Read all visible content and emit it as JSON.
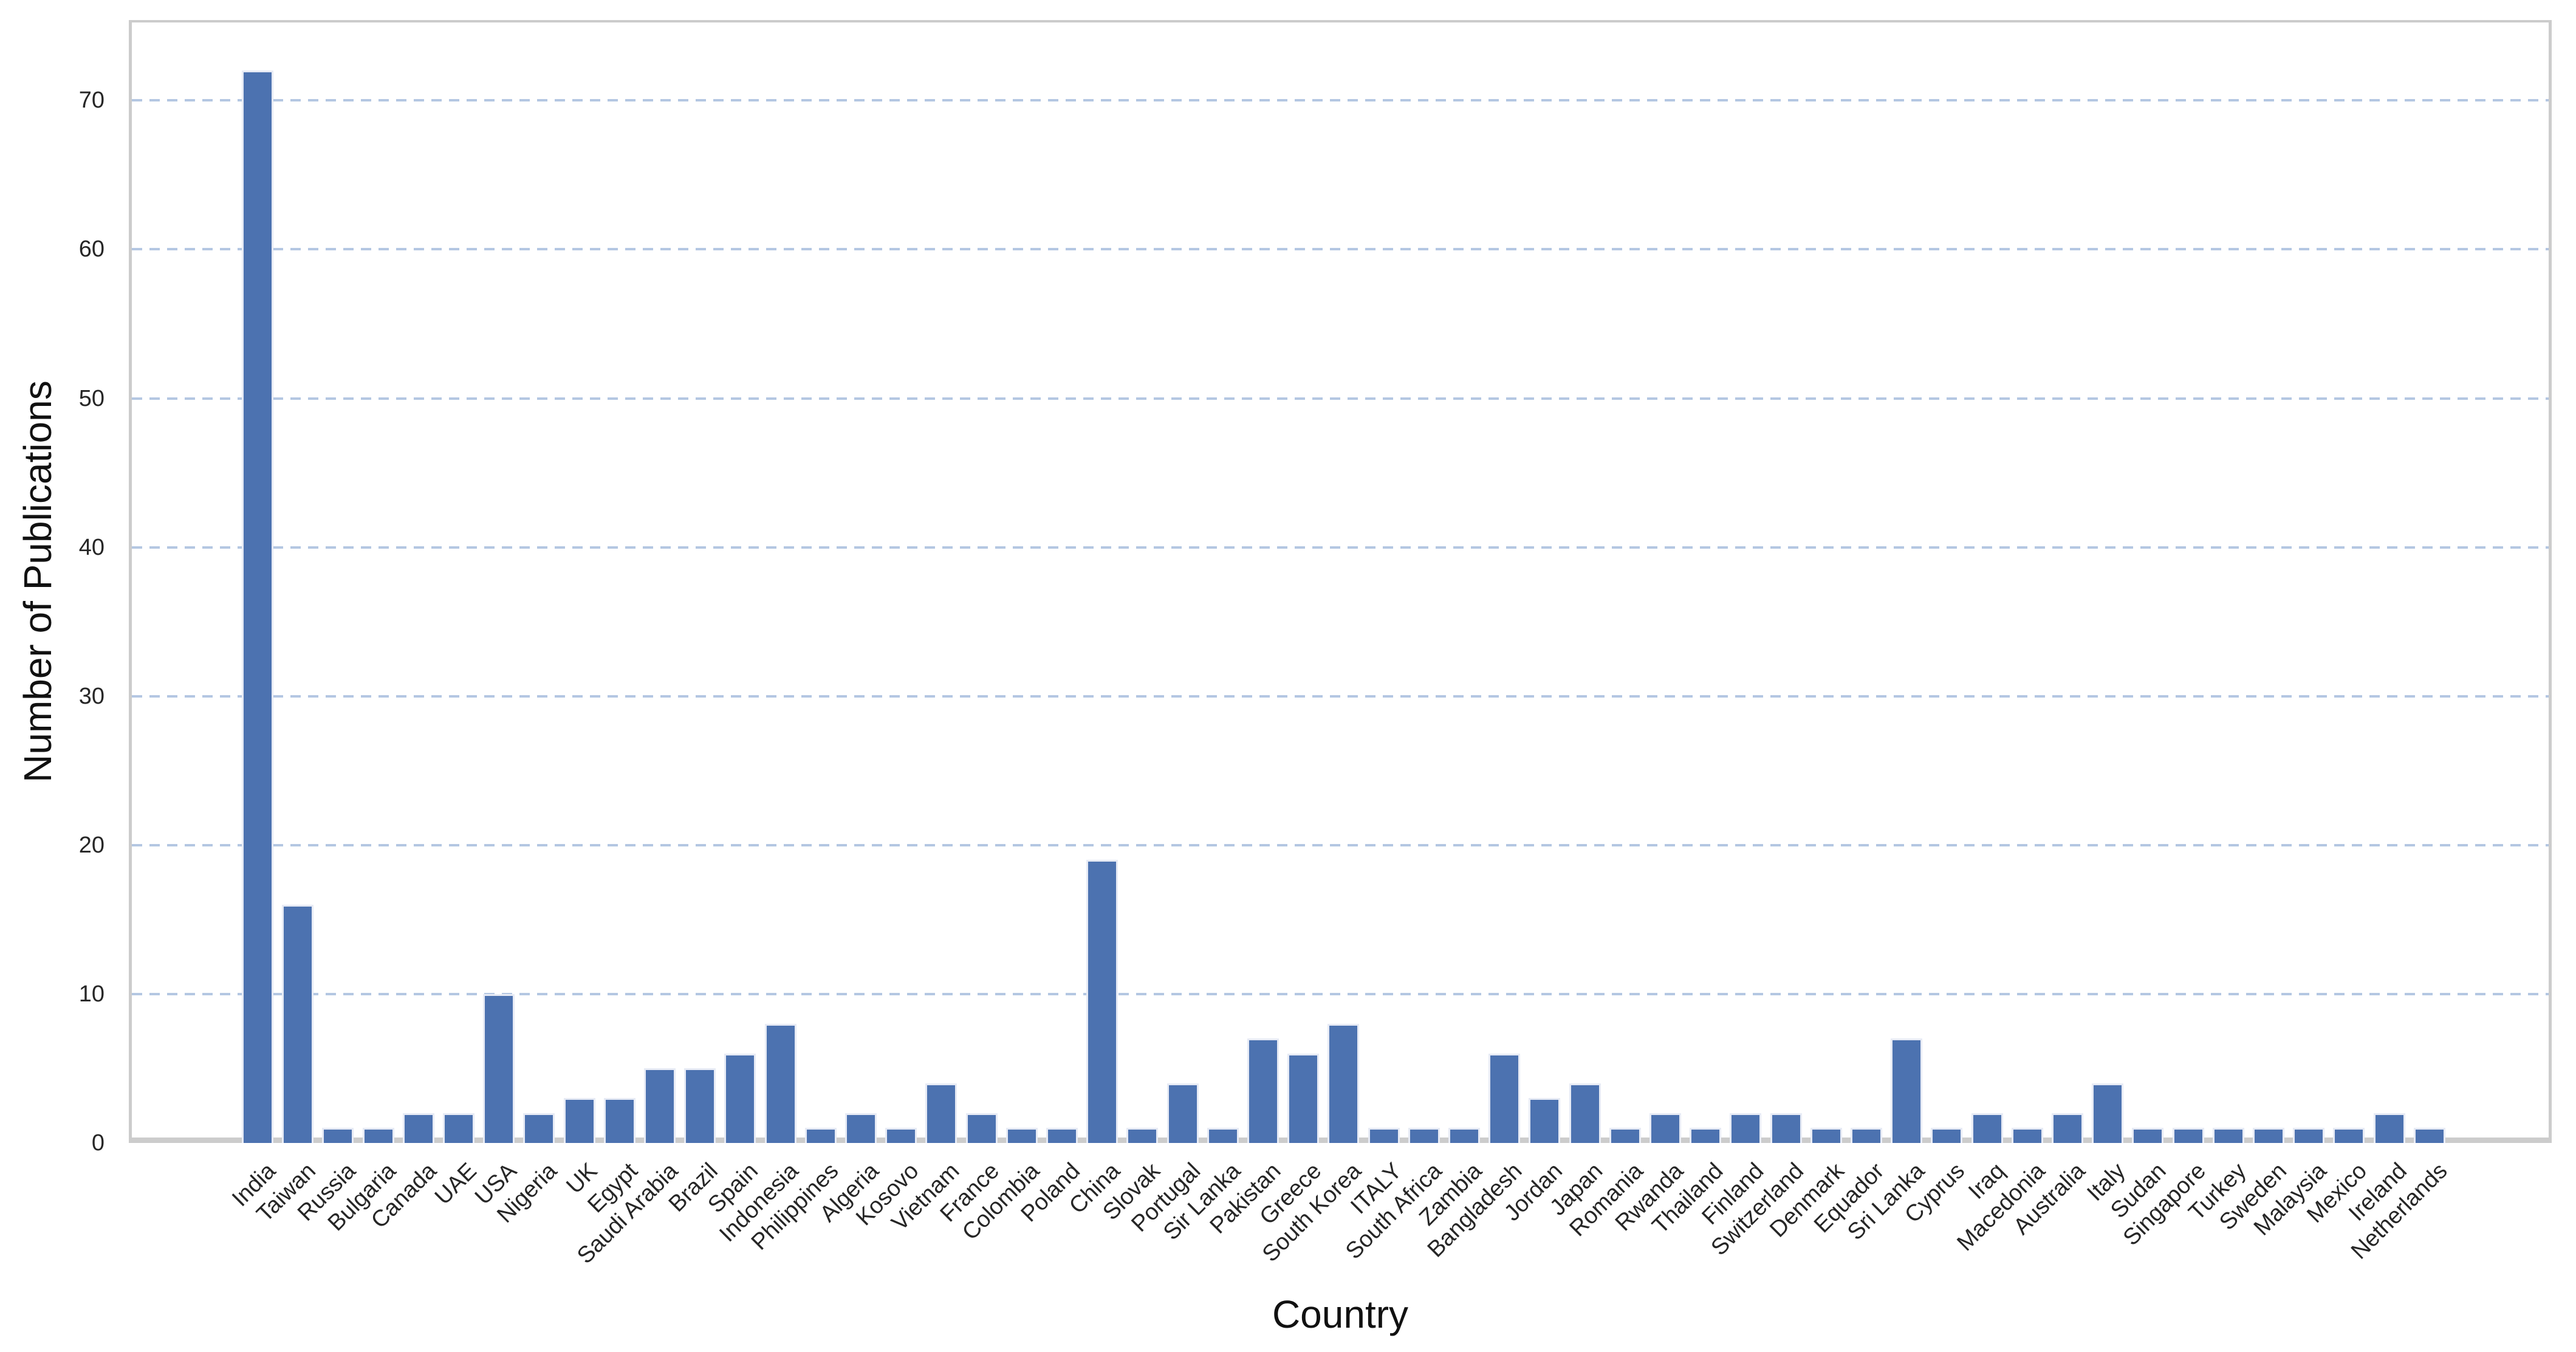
{
  "chart_data": {
    "type": "bar",
    "title": "",
    "xlabel": "Country",
    "ylabel": "Number of Publications",
    "categories": [
      "India",
      "Taiwan",
      "Russia",
      "Bulgaria",
      "Canada",
      "UAE",
      "USA",
      "Nigeria",
      "UK",
      "Egypt",
      "Saudi Arabia",
      "Brazil",
      "Spain",
      "Indonesia",
      "Philippines",
      "Algeria",
      "Kosovo",
      "Vietnam",
      "France",
      "Colombia",
      "Poland",
      "China",
      "Slovak",
      "Portugal",
      "Sir Lanka",
      "Pakistan",
      "Greece",
      "South Korea",
      "ITALY",
      "South Africa",
      "Zambia",
      "Bangladesh",
      "Jordan",
      "Japan",
      "Romania",
      "Rwanda",
      "Thailand",
      "Finland",
      "Switzerland",
      "Denmark",
      "Equador",
      "Sri Lanka",
      "Cyprus",
      "Iraq",
      "Macedonia",
      "Australia",
      "Italy",
      "Sudan",
      "Singapore",
      "Turkey",
      "Sweden",
      "Malaysia",
      "Mexico",
      "Ireland",
      "Netherlands"
    ],
    "values": [
      72,
      16,
      1,
      1,
      2,
      2,
      10,
      2,
      3,
      3,
      5,
      5,
      6,
      8,
      1,
      2,
      1,
      4,
      2,
      1,
      1,
      19,
      1,
      4,
      1,
      7,
      6,
      8,
      1,
      1,
      1,
      6,
      3,
      4,
      1,
      2,
      1,
      2,
      2,
      1,
      1,
      7,
      1,
      2,
      1,
      2,
      4,
      1,
      1,
      1,
      1,
      1,
      1,
      2,
      1
    ],
    "yticks": [
      0,
      10,
      20,
      30,
      40,
      50,
      60,
      70
    ],
    "ylim": [
      0,
      75.4
    ],
    "xtick_rotation_deg": 45,
    "grid": {
      "axis": "y",
      "line_style": "dashed",
      "on": true
    },
    "legend": null,
    "colors": {
      "bar_fill": "#4c72b0",
      "bar_edge": "#e7ebf5",
      "gridline": "#b4c7e2",
      "spine": "#cccccc",
      "tick_text": "#262626",
      "axis_label_text": "#111111",
      "background": "#ffffff"
    }
  }
}
